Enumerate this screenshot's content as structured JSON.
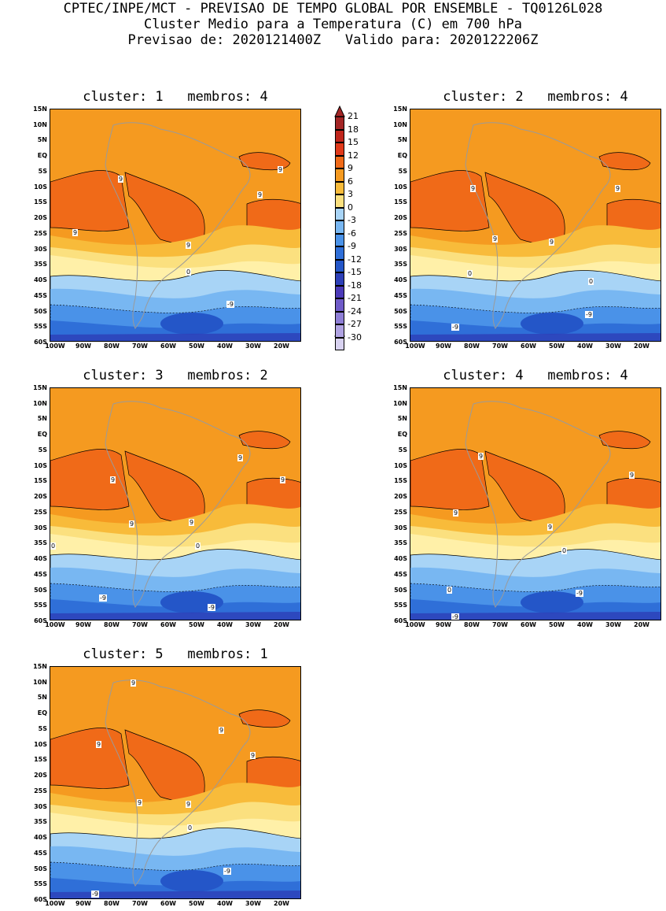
{
  "header": {
    "line1": "CPTEC/INPE/MCT - PREVISAO DE TEMPO GLOBAL POR ENSEMBLE - TQ0126L028",
    "line2": "Cluster Medio para a Temperatura (C) em 700 hPa",
    "line3": "Previsao de: 2020121400Z   Valido para: 2020122206Z"
  },
  "colorbar": {
    "labels": [
      "21",
      "18",
      "15",
      "12",
      "9",
      "6",
      "3",
      "0",
      "-3",
      "-6",
      "-9",
      "-12",
      "-15",
      "-18",
      "-21",
      "-24",
      "-27",
      "-30"
    ],
    "colors": [
      "#a32525",
      "#c0261c",
      "#e0391a",
      "#f06a18",
      "#f59a20",
      "#f8bb3a",
      "#fbe07f",
      "#a8d4f6",
      "#78b7f2",
      "#4a92e8",
      "#2f6fd8",
      "#2456c8",
      "#2d3fb8",
      "#4b3ab8",
      "#6f5bc8",
      "#8e7ed6",
      "#b0a3e2",
      "#d8d2f0"
    ]
  },
  "axes": {
    "y_ticks": [
      "15N",
      "10N",
      "5N",
      "EQ",
      "5S",
      "10S",
      "15S",
      "20S",
      "25S",
      "30S",
      "35S",
      "40S",
      "45S",
      "50S",
      "55S",
      "60S"
    ],
    "x_ticks": [
      "100W",
      "90W",
      "80W",
      "70W",
      "60W",
      "50W",
      "40W",
      "30W",
      "20W"
    ]
  },
  "panels": [
    {
      "title": "cluster: 1   membros: 4",
      "labels": [
        {
          "t": "9"
        },
        {
          "t": "9"
        },
        {
          "t": "9"
        },
        {
          "t": "9"
        },
        {
          "t": "9"
        },
        {
          "t": "0"
        },
        {
          "t": "-9"
        }
      ]
    },
    {
      "title": "cluster: 2   membros: 4",
      "labels": [
        {
          "t": "9"
        },
        {
          "t": "9"
        },
        {
          "t": "9"
        },
        {
          "t": "9"
        },
        {
          "t": "0"
        },
        {
          "t": "0"
        },
        {
          "t": "-9"
        },
        {
          "t": "-9"
        }
      ]
    },
    {
      "title": "cluster: 3   membros: 2",
      "labels": [
        {
          "t": "9"
        },
        {
          "t": "9"
        },
        {
          "t": "9"
        },
        {
          "t": "9"
        },
        {
          "t": "9"
        },
        {
          "t": "0"
        },
        {
          "t": "0"
        },
        {
          "t": "-9"
        },
        {
          "t": "-9"
        }
      ]
    },
    {
      "title": "cluster: 4   membros: 4",
      "labels": [
        {
          "t": "9"
        },
        {
          "t": "9"
        },
        {
          "t": "9"
        },
        {
          "t": "9"
        },
        {
          "t": "0"
        },
        {
          "t": "0"
        },
        {
          "t": "-9"
        },
        {
          "t": "-9"
        }
      ]
    },
    {
      "title": "cluster: 5   membros: 1",
      "labels": [
        {
          "t": "9"
        },
        {
          "t": "9"
        },
        {
          "t": "9"
        },
        {
          "t": "9"
        },
        {
          "t": "9"
        },
        {
          "t": "9"
        },
        {
          "t": "0"
        },
        {
          "t": "-9"
        },
        {
          "t": "-9"
        }
      ]
    }
  ]
}
